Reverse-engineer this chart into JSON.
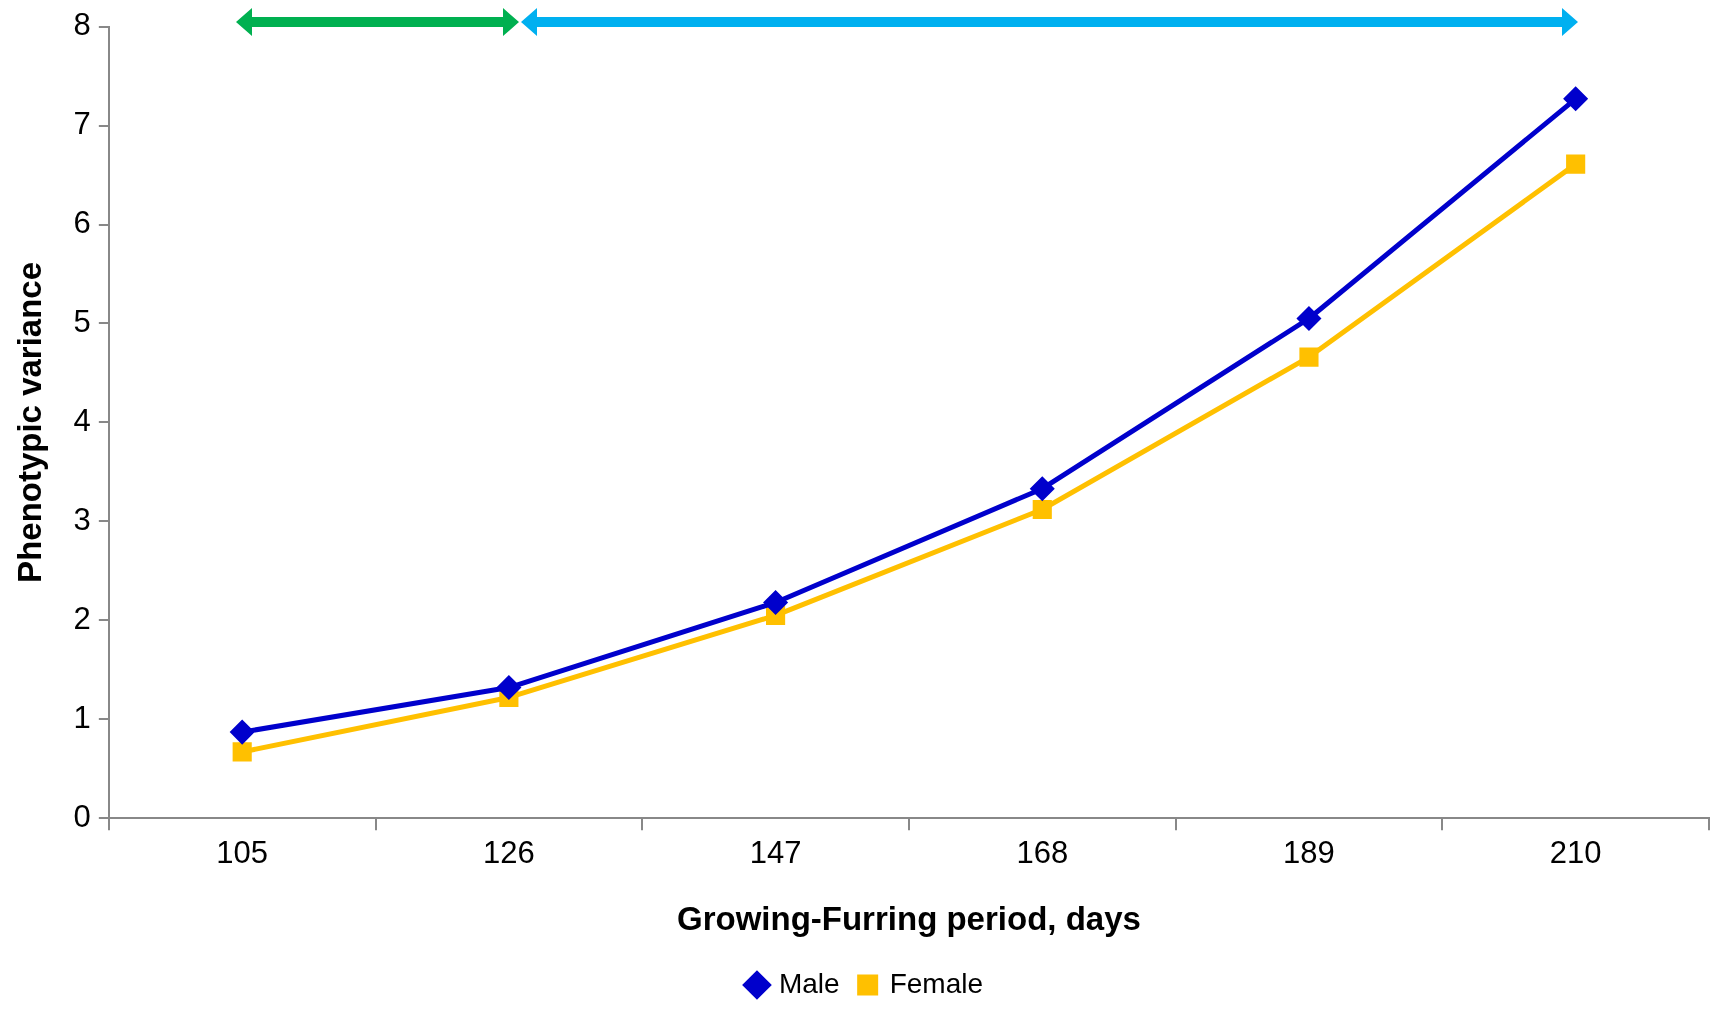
{
  "chart_data": {
    "type": "line",
    "xlabel": "Growing-Furring period, days",
    "ylabel": "Phenotypic variance",
    "categories": [
      "105",
      "126",
      "147",
      "168",
      "189",
      "210"
    ],
    "series": [
      {
        "name": "Male",
        "color": "#0000cc",
        "marker": "diamond",
        "values": [
          0.87,
          1.32,
          2.18,
          3.33,
          5.05,
          7.27
        ]
      },
      {
        "name": "Female",
        "color": "#ffc000",
        "marker": "square",
        "values": [
          0.67,
          1.22,
          2.05,
          3.12,
          4.66,
          6.61
        ]
      }
    ],
    "ylim": [
      0,
      8
    ],
    "yticks": [
      0,
      1,
      2,
      3,
      4,
      5,
      6,
      7,
      8
    ],
    "grid": false,
    "legend": "bottom",
    "line_style": "solid"
  }
}
